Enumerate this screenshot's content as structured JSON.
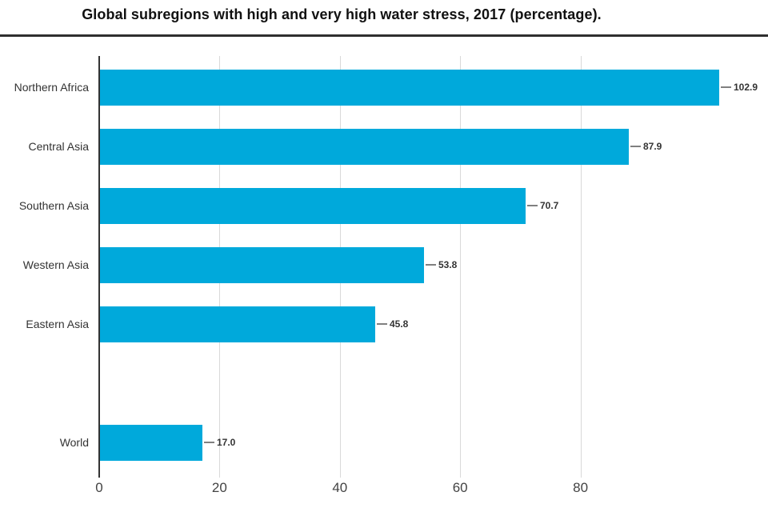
{
  "title": "Global subregions with high and very high water stress, 2017 (percentage).",
  "chart_data": {
    "type": "bar",
    "orientation": "horizontal",
    "title": "Global subregions with high and very high water stress, 2017 (percentage).",
    "categories": [
      "Northern Africa",
      "Central Asia",
      "Southern Asia",
      "Western Asia",
      "Eastern Asia",
      "World"
    ],
    "values": [
      102.9,
      87.9,
      70.7,
      53.8,
      45.8,
      17.0
    ],
    "value_labels": [
      "102.9",
      "87.9",
      "70.7",
      "53.8",
      "45.8",
      "17.0"
    ],
    "x_ticks": [
      0,
      20,
      40,
      60,
      80
    ],
    "xlim": [
      0,
      109
    ],
    "xlabel": "",
    "ylabel": "",
    "grid": true,
    "legend": false,
    "bar_color": "#00a9db",
    "axis_color": "#333333",
    "gridline_color": "#d9d9d9",
    "label_color": "#333333",
    "tick_label_color": "#434343",
    "row_slots": [
      0,
      1,
      2,
      3,
      4,
      6
    ],
    "total_slots": 7
  }
}
